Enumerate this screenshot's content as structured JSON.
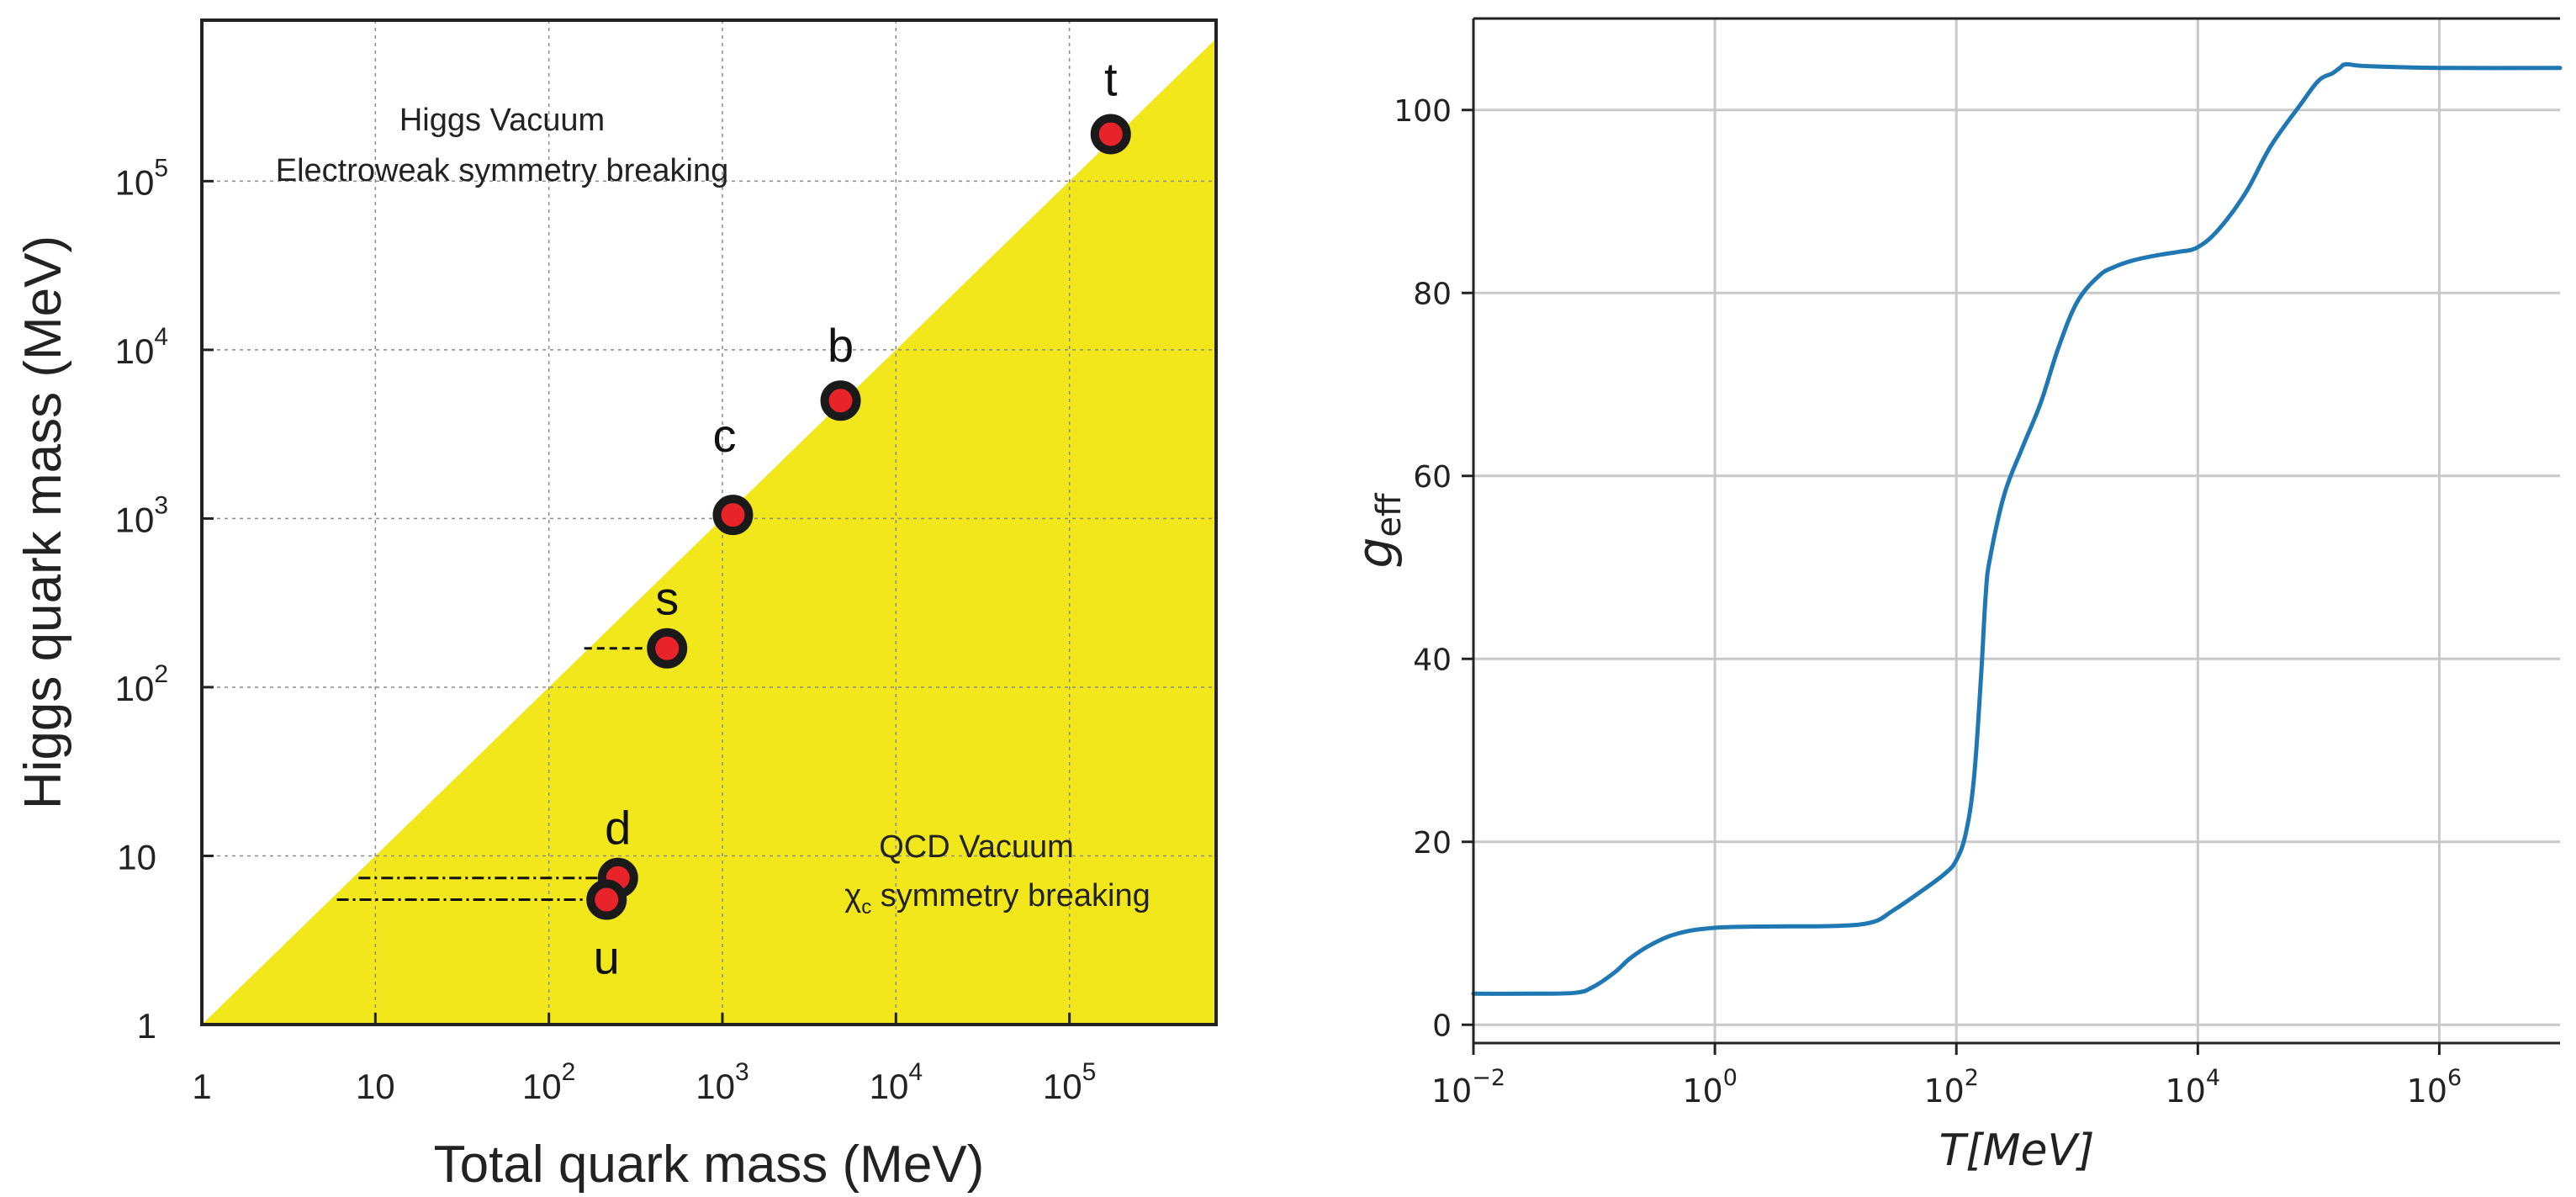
{
  "chart_data": [
    {
      "type": "scatter",
      "title": "",
      "xlabel": "Total quark mass (MeV)",
      "ylabel": "Higgs quark mass (MeV)",
      "xscale": "log",
      "yscale": "log",
      "xlim": [
        1,
        700000
      ],
      "ylim": [
        1,
        900000
      ],
      "grid": true,
      "x_ticks": [
        {
          "value": 1,
          "base": "1",
          "exp": ""
        },
        {
          "value": 10,
          "base": "10",
          "exp": ""
        },
        {
          "value": 100,
          "base": "10",
          "exp": "2"
        },
        {
          "value": 1000,
          "base": "10",
          "exp": "3"
        },
        {
          "value": 10000,
          "base": "10",
          "exp": "4"
        },
        {
          "value": 100000,
          "base": "10",
          "exp": "5"
        }
      ],
      "y_ticks": [
        {
          "value": 1,
          "base": "1",
          "exp": ""
        },
        {
          "value": 10,
          "base": "10",
          "exp": ""
        },
        {
          "value": 100,
          "base": "10",
          "exp": "2"
        },
        {
          "value": 1000,
          "base": "10",
          "exp": "3"
        },
        {
          "value": 10000,
          "base": "10",
          "exp": "4"
        },
        {
          "value": 100000,
          "base": "10",
          "exp": "5"
        }
      ],
      "shaded_region": {
        "description": "below diagonal y = x",
        "color": "#f2e71a"
      },
      "points": [
        {
          "label": "t",
          "x": 173000,
          "y": 190000,
          "label_pos": "above"
        },
        {
          "label": "b",
          "x": 4800,
          "y": 5000,
          "label_pos": "above"
        },
        {
          "label": "c",
          "x": 1150,
          "y": 1050,
          "label_pos": "above-left"
        },
        {
          "label": "s",
          "x": 480,
          "y": 170,
          "label_pos": "above"
        },
        {
          "label": "d",
          "x": 250,
          "y": 7.4,
          "label_pos": "above"
        },
        {
          "label": "u",
          "x": 215,
          "y": 5.5,
          "label_pos": "below"
        }
      ],
      "reference_lines": [
        {
          "style": "dashed",
          "y": 170,
          "x_from": 160,
          "x_to": 480
        },
        {
          "style": "dash-dot",
          "y": 7.4,
          "x_from": 8,
          "x_to": 250
        },
        {
          "style": "dash-dot",
          "y": 5.5,
          "x_from": 6,
          "x_to": 215
        }
      ],
      "annotations": {
        "higgs_title": "Higgs Vacuum",
        "higgs_subtitle": "Electroweak symmetry breaking",
        "qcd_title": "QCD Vacuum",
        "qcd_chi": "χ",
        "qcd_chi_sub": "c",
        "qcd_subtitle": " symmetry breaking"
      },
      "colors": {
        "point_fill": "#e8232a",
        "point_ring": "#1a1a1a",
        "region": "#f2e71a"
      }
    },
    {
      "type": "line",
      "title": "",
      "xlabel": "T[MeV]",
      "ylabel_main": "g",
      "ylabel_sub": "eff",
      "xscale": "log",
      "xlim": [
        0.01,
        10000000
      ],
      "ylim": [
        -2,
        110
      ],
      "grid": true,
      "x_ticks": [
        {
          "value": 0.01,
          "base": "10",
          "exp": "−2"
        },
        {
          "value": 1,
          "base": "10",
          "exp": "0"
        },
        {
          "value": 100,
          "base": "10",
          "exp": "2"
        },
        {
          "value": 10000,
          "base": "10",
          "exp": "4"
        },
        {
          "value": 1000000,
          "base": "10",
          "exp": "6"
        }
      ],
      "y_ticks": [
        0,
        20,
        40,
        60,
        80,
        100
      ],
      "series": [
        {
          "name": "g_eff",
          "color": "#1f77b4",
          "points": [
            [
              0.01,
              3.4
            ],
            [
              0.03,
              3.4
            ],
            [
              0.07,
              3.5
            ],
            [
              0.1,
              4.2
            ],
            [
              0.15,
              5.8
            ],
            [
              0.2,
              7.3
            ],
            [
              0.3,
              8.8
            ],
            [
              0.5,
              10.0
            ],
            [
              1,
              10.6
            ],
            [
              3,
              10.75
            ],
            [
              10,
              10.8
            ],
            [
              20,
              11.2
            ],
            [
              30,
              12.5
            ],
            [
              50,
              14.5
            ],
            [
              80,
              16.5
            ],
            [
              100,
              18.0
            ],
            [
              120,
              21.0
            ],
            [
              140,
              27.0
            ],
            [
              160,
              38.0
            ],
            [
              175,
              47.0
            ],
            [
              190,
              51.0
            ],
            [
              250,
              58.0
            ],
            [
              350,
              63.0
            ],
            [
              500,
              68.0
            ],
            [
              700,
              74.0
            ],
            [
              1000,
              79.0
            ],
            [
              1500,
              81.8
            ],
            [
              2000,
              82.8
            ],
            [
              3000,
              83.6
            ],
            [
              5000,
              84.2
            ],
            [
              7000,
              84.5
            ],
            [
              10000,
              85.0
            ],
            [
              15000,
              87.0
            ],
            [
              25000,
              91.0
            ],
            [
              40000,
              96.0
            ],
            [
              70000,
              100.5
            ],
            [
              100000,
              103.2
            ],
            [
              130000,
              104.0
            ],
            [
              150000,
              104.6
            ],
            [
              170000,
              105.0
            ],
            [
              250000,
              104.8
            ],
            [
              1000000,
              104.6
            ],
            [
              10000000,
              104.6
            ]
          ]
        }
      ]
    }
  ]
}
